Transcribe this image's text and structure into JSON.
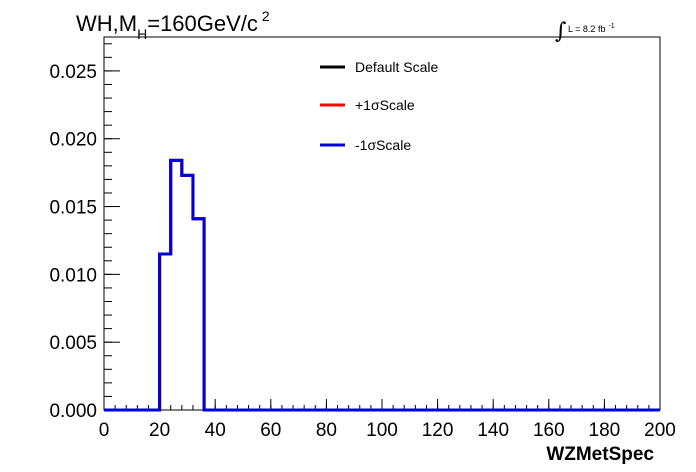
{
  "chart_data": {
    "type": "line",
    "title": {
      "main": "WH,M",
      "subscript": "H",
      "rest": "=160GeV/c",
      "superscript": "2"
    },
    "luminosity": {
      "integral_symbol": "∫",
      "text": "L = 8.2 fb",
      "superscript": "-1"
    },
    "xlabel": "WZMetSpec",
    "ylabel": "",
    "xlim": [
      0,
      200
    ],
    "ylim": [
      0,
      0.0275
    ],
    "x_ticks": [
      "0",
      "20",
      "40",
      "60",
      "80",
      "100",
      "120",
      "140",
      "160",
      "180",
      "200"
    ],
    "y_ticks": [
      "0.000",
      "0.005",
      "0.010",
      "0.015",
      "0.020",
      "0.025"
    ],
    "bin_edges": [
      0,
      4,
      8,
      12,
      16,
      20,
      24,
      28,
      32,
      36,
      40,
      44,
      48,
      52,
      56,
      60,
      64,
      68,
      72,
      76,
      80,
      84,
      88,
      92,
      96,
      100,
      104,
      108,
      112,
      116,
      120,
      124,
      128,
      132,
      136,
      140,
      144,
      148,
      152,
      156,
      160,
      164,
      168,
      172,
      176,
      180,
      184,
      188,
      192,
      196,
      200
    ],
    "series": [
      {
        "name": "Default Scale",
        "color": "#000000",
        "values": [
          0,
          0,
          0,
          0,
          0,
          0.0115,
          0.0184,
          0.0173,
          0.0141,
          0,
          0,
          0,
          0,
          0,
          0,
          0,
          0,
          0,
          0,
          0,
          0,
          0,
          0,
          0,
          0,
          0,
          0,
          0,
          0,
          0,
          0,
          0,
          0,
          0,
          0,
          0,
          0,
          0,
          0,
          0,
          0,
          0,
          0,
          0,
          0,
          0,
          0,
          0,
          0,
          0
        ]
      },
      {
        "name": "+1σScale",
        "color": "#ff0000",
        "values": [
          0,
          0,
          0,
          0,
          0,
          0.0115,
          0.0184,
          0.0173,
          0.0141,
          0,
          0,
          0,
          0,
          0,
          0,
          0,
          0,
          0,
          0,
          0,
          0,
          0,
          0,
          0,
          0,
          0,
          0,
          0,
          0,
          0,
          0,
          0,
          0,
          0,
          0,
          0,
          0,
          0,
          0,
          0,
          0,
          0,
          0,
          0,
          0,
          0,
          0,
          0,
          0,
          0
        ]
      },
      {
        "name": "-1σScale",
        "color": "#0000dd",
        "values": [
          0,
          0,
          0,
          0,
          0,
          0.0115,
          0.0184,
          0.0173,
          0.0141,
          0,
          0,
          0,
          0,
          0,
          0,
          0,
          0,
          0,
          0,
          0,
          0,
          0,
          0,
          0,
          0,
          0,
          0,
          0,
          0,
          0,
          0,
          0,
          0,
          0,
          0,
          0,
          0,
          0,
          0,
          0,
          0,
          0,
          0,
          0,
          0,
          0,
          0,
          0,
          0,
          0
        ]
      }
    ],
    "grid": false,
    "legend_position": "top-center"
  }
}
